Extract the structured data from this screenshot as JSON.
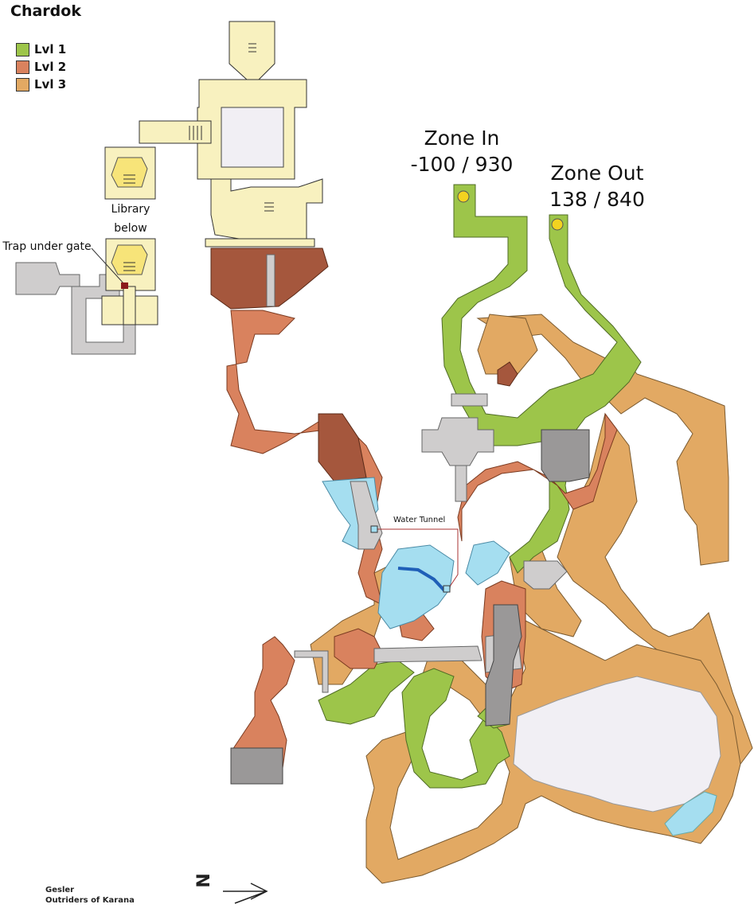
{
  "title": "Chardok",
  "legend": [
    {
      "label": "Lvl 1",
      "color": "#9dc54a"
    },
    {
      "label": "Lvl 2",
      "color": "#d9825e"
    },
    {
      "label": "Lvl 3",
      "color": "#e2a963"
    }
  ],
  "labels": {
    "zone_in": "Zone In",
    "zone_in_coords": "-100 / 930",
    "zone_out": "Zone Out",
    "zone_out_coords": "138 / 840",
    "library_line1": "Library",
    "library_line2": "below",
    "trap": "Trap under gate",
    "water_tunnel": "Water Tunnel",
    "compass_letter": "N"
  },
  "credit": {
    "author": "Gesler",
    "guild": "Outriders of Karana"
  },
  "colors": {
    "lvl1": "#9dc54a",
    "lvl2": "#d9825e",
    "lvl3": "#e2a963",
    "dark_brown": "#a5573d",
    "palace": "#f8f1bf",
    "water": "#a5def0",
    "deep_water": "#1f5fb8",
    "stone": "#cfcdcd",
    "dark_stone": "#9a9898",
    "room_fill": "#f1eff4",
    "zone_marker": "#f3d320"
  }
}
